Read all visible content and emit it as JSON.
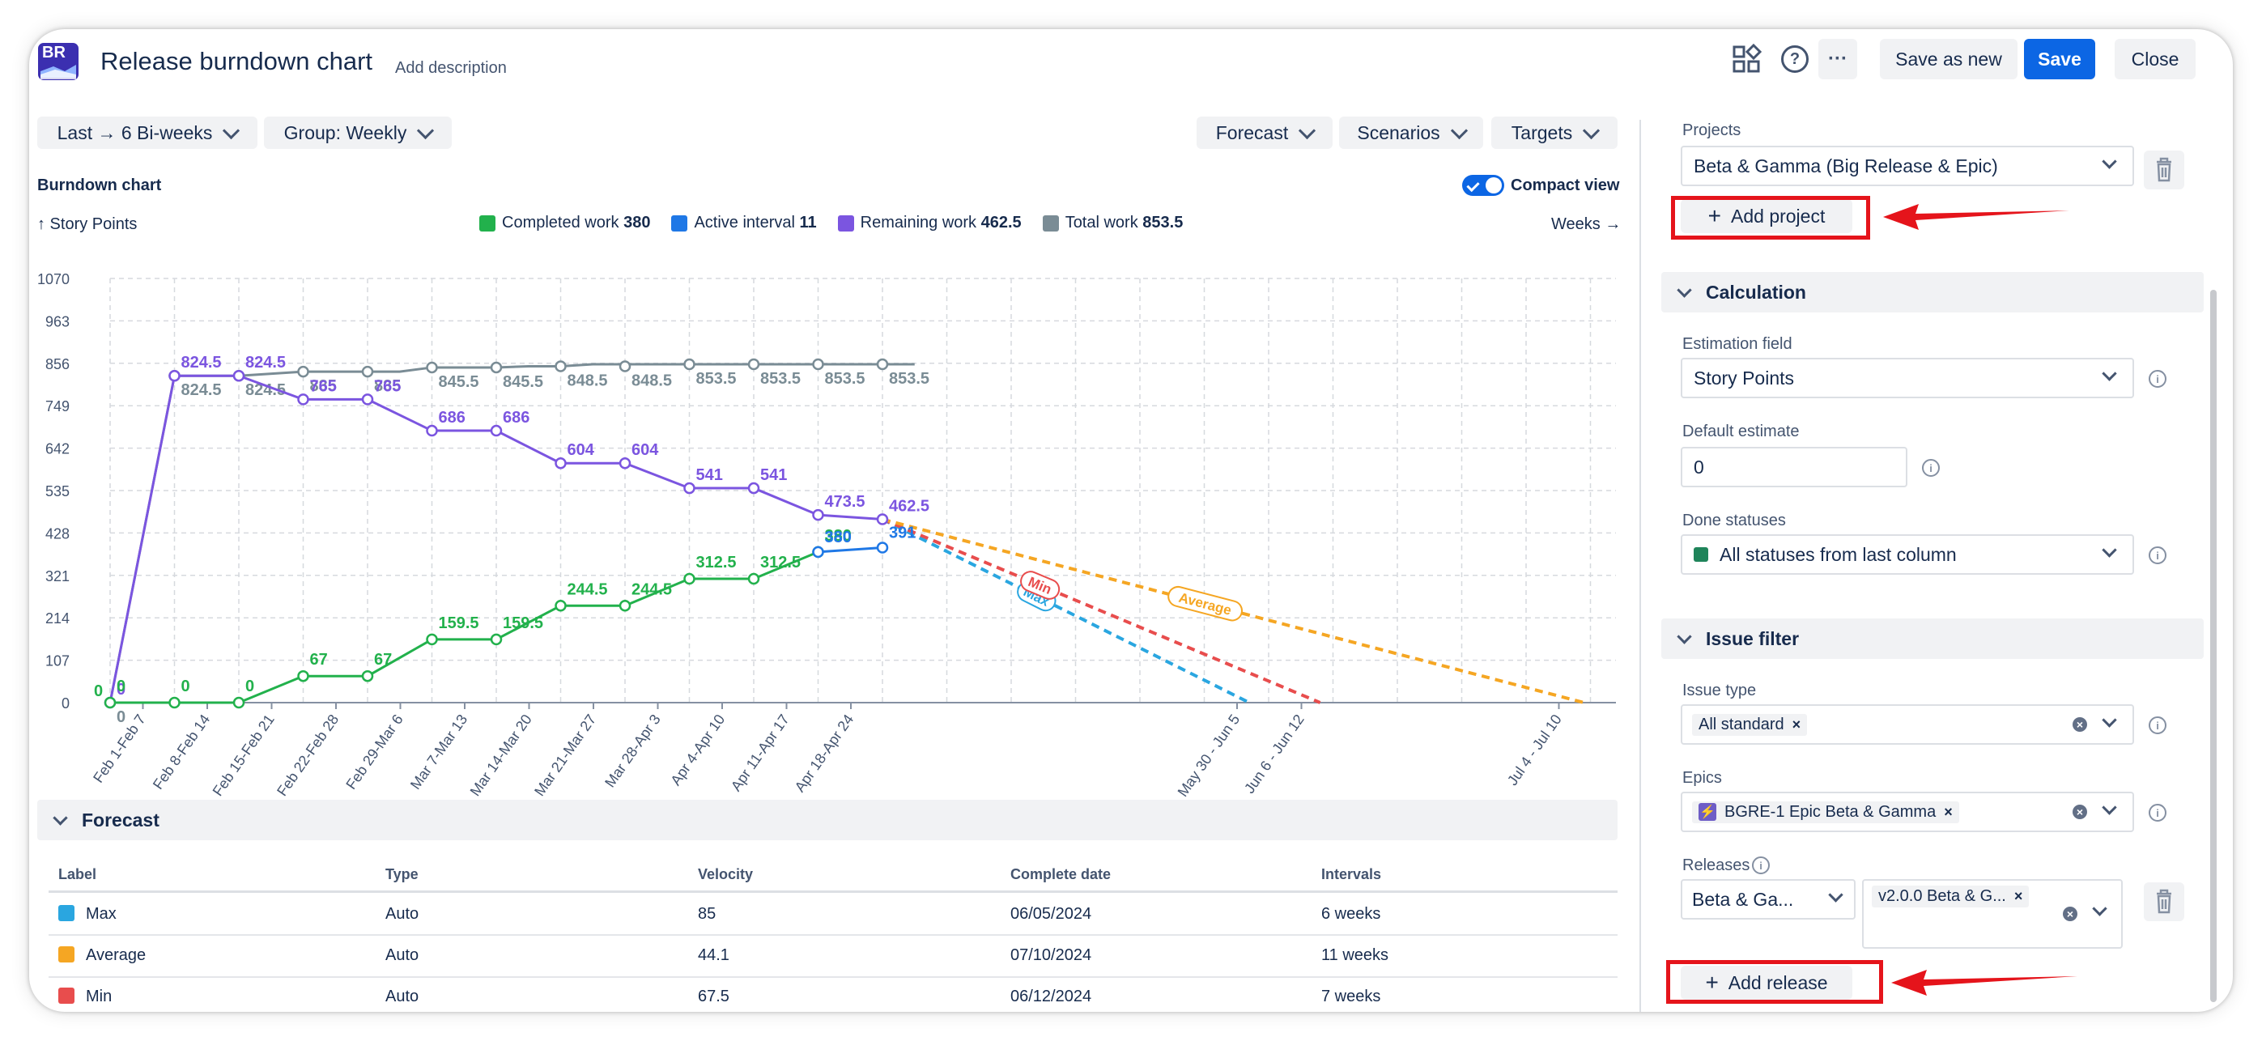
{
  "header": {
    "logo_text": "BR",
    "title": "Release burndown chart",
    "add_description": "Add description",
    "save_as_new": "Save as new",
    "save": "Save",
    "close": "Close",
    "help_icon": "?",
    "more_icon": "···"
  },
  "toolbar": {
    "range": "Last → 6 Bi-weeks",
    "group": "Group: Weekly",
    "forecast": "Forecast",
    "scenarios": "Scenarios",
    "targets": "Targets"
  },
  "chart_header": {
    "title": "Burndown chart",
    "compact_view": "Compact view",
    "y_axis_label": "↑ Story Points",
    "x_axis_label": "Weeks →"
  },
  "legend": [
    {
      "name": "Completed work",
      "value": "380",
      "color": "#22b14c"
    },
    {
      "name": "Active interval",
      "value": "11",
      "color": "#1f78e6"
    },
    {
      "name": "Remaining work",
      "value": "462.5",
      "color": "#7b55e0"
    },
    {
      "name": "Total work",
      "value": "853.5",
      "color": "#7a8c95"
    }
  ],
  "chart_data": {
    "type": "line",
    "ylim": [
      0,
      1070
    ],
    "y_ticks": [
      "0",
      "107",
      "214",
      "321",
      "428",
      "535",
      "642",
      "749",
      "856",
      "963",
      "1070"
    ],
    "x_tick_labels": [
      {
        "i": 1,
        "label": "Feb 1-Feb 7"
      },
      {
        "i": 2,
        "label": "Feb 8-Feb 14"
      },
      {
        "i": 3,
        "label": "Feb 15-Feb 21"
      },
      {
        "i": 4,
        "label": "Feb 22-Feb 28"
      },
      {
        "i": 5,
        "label": "Feb 29-Mar 6"
      },
      {
        "i": 6,
        "label": "Mar 7-Mar 13"
      },
      {
        "i": 7,
        "label": "Mar 14-Mar 20"
      },
      {
        "i": 8,
        "label": "Mar 21-Mar 27"
      },
      {
        "i": 9,
        "label": "Mar 28-Apr 3"
      },
      {
        "i": 10,
        "label": "Apr 4-Apr 10"
      },
      {
        "i": 11,
        "label": "Apr 11-Apr 17"
      },
      {
        "i": 12,
        "label": "Apr 18-Apr 24"
      },
      {
        "i": 18,
        "label": "May 30 - Jun 5"
      },
      {
        "i": 19,
        "label": "Jun 6 - Jun 12"
      },
      {
        "i": 23,
        "label": "Jul 4 - Jul 10"
      }
    ],
    "series": [
      {
        "name": "Total work",
        "color": "#7a8c95",
        "x": [
          0,
          1,
          2,
          3,
          3.5,
          4,
          4.5,
          5,
          6,
          6.5,
          7,
          7.5,
          8,
          8.5,
          9,
          9.5,
          10,
          10.5,
          11,
          11.5,
          12,
          12.5
        ],
        "values": [
          0,
          824.5,
          824.5,
          835,
          835,
          835,
          835,
          845.5,
          845.5,
          848.5,
          848.5,
          853.5,
          853.5,
          853.5,
          853.5,
          853.5,
          853.5,
          853.5,
          853.5,
          853.5,
          853.5,
          853.5
        ],
        "points": [
          {
            "x": 1,
            "y": 824.5,
            "label": "824.5"
          },
          {
            "x": 2,
            "y": 824.5,
            "label": "824.5"
          },
          {
            "x": 3,
            "y": 835,
            "label": "835"
          },
          {
            "x": 4,
            "y": 835,
            "label": "835"
          },
          {
            "x": 5,
            "y": 845.5,
            "label": "845.5"
          },
          {
            "x": 6,
            "y": 845.5,
            "label": "845.5"
          },
          {
            "x": 7,
            "y": 848.5,
            "label": "848.5"
          },
          {
            "x": 8,
            "y": 848.5,
            "label": "848.5"
          },
          {
            "x": 9,
            "y": 853.5,
            "label": "853.5"
          },
          {
            "x": 10,
            "y": 853.5,
            "label": "853.5"
          },
          {
            "x": 11,
            "y": 853.5,
            "label": "853.5"
          },
          {
            "x": 12,
            "y": 853.5,
            "label": "853.5"
          }
        ]
      },
      {
        "name": "Remaining work",
        "color": "#7b55e0",
        "points": [
          {
            "x": 0,
            "y": 0,
            "label": "0"
          },
          {
            "x": 1,
            "y": 824.5,
            "label": "824.5"
          },
          {
            "x": 2,
            "y": 824.5,
            "label": "824.5"
          },
          {
            "x": 3,
            "y": 765,
            "label": "765"
          },
          {
            "x": 4,
            "y": 765,
            "label": "765"
          },
          {
            "x": 5,
            "y": 686,
            "label": "686"
          },
          {
            "x": 6,
            "y": 686,
            "label": "686"
          },
          {
            "x": 7,
            "y": 604,
            "label": "604"
          },
          {
            "x": 8,
            "y": 604,
            "label": "604"
          },
          {
            "x": 9,
            "y": 541,
            "label": "541"
          },
          {
            "x": 10,
            "y": 541,
            "label": "541"
          },
          {
            "x": 11,
            "y": 473.5,
            "label": "473.5"
          },
          {
            "x": 12,
            "y": 462.5,
            "label": "462.5"
          }
        ]
      },
      {
        "name": "Completed work",
        "color": "#22b14c",
        "points": [
          {
            "x": 0,
            "y": 0,
            "label": "0"
          },
          {
            "x": 1,
            "y": 0,
            "label": "0"
          },
          {
            "x": 2,
            "y": 0,
            "label": "0"
          },
          {
            "x": 3,
            "y": 67,
            "label": "67"
          },
          {
            "x": 4,
            "y": 67,
            "label": "67"
          },
          {
            "x": 5,
            "y": 159.5,
            "label": "159.5"
          },
          {
            "x": 6,
            "y": 159.5,
            "label": "159.5"
          },
          {
            "x": 7,
            "y": 244.5,
            "label": "244.5"
          },
          {
            "x": 8,
            "y": 244.5,
            "label": "244.5"
          },
          {
            "x": 9,
            "y": 312.5,
            "label": "312.5"
          },
          {
            "x": 10,
            "y": 312.5,
            "label": "312.5"
          },
          {
            "x": 11,
            "y": 380,
            "label": "380"
          }
        ]
      },
      {
        "name": "Active interval",
        "color": "#1f78e6",
        "points": [
          {
            "x": 11,
            "y": 380,
            "label": "380"
          },
          {
            "x": 12,
            "y": 391,
            "label": "391"
          }
        ]
      }
    ],
    "forecasts": [
      {
        "label": "Max",
        "color": "#2aa6e0",
        "from": [
          12,
          462.5
        ],
        "to": [
          17.7,
          0
        ]
      },
      {
        "label": "Min",
        "color": "#e84d4d",
        "from": [
          12,
          462.5
        ],
        "to": [
          18.8,
          0
        ]
      },
      {
        "label": "Average",
        "color": "#f5a623",
        "from": [
          12,
          462.5
        ],
        "to": [
          22.9,
          0
        ]
      }
    ],
    "extra_labels": [
      {
        "x": 0,
        "y": 0,
        "label": "0",
        "color": "#22b14c"
      },
      {
        "x": 0,
        "y": 0,
        "label": "0",
        "color": "#7a8c95"
      }
    ]
  },
  "forecast_section": {
    "title": "Forecast",
    "columns": [
      "Label",
      "Type",
      "Velocity",
      "Complete date",
      "Intervals"
    ],
    "rows": [
      {
        "label": "Max",
        "type": "Auto",
        "velocity": "85",
        "date": "06/05/2024",
        "intervals": "6 weeks",
        "color": "#2aa6e0"
      },
      {
        "label": "Average",
        "type": "Auto",
        "velocity": "44.1",
        "date": "07/10/2024",
        "intervals": "11 weeks",
        "color": "#f5a623"
      },
      {
        "label": "Min",
        "type": "Auto",
        "velocity": "67.5",
        "date": "06/12/2024",
        "intervals": "7 weeks",
        "color": "#e84d4d"
      }
    ]
  },
  "settings": {
    "projects_label": "Projects",
    "project_value": "Beta & Gamma (Big Release & Epic)",
    "add_project": "Add project",
    "calculation_title": "Calculation",
    "estimation_label": "Estimation field",
    "estimation_value": "Story Points",
    "default_estimate_label": "Default estimate",
    "default_estimate_value": "0",
    "done_statuses_label": "Done statuses",
    "done_statuses_value": "All statuses from last column",
    "issue_filter_title": "Issue filter",
    "issue_type_label": "Issue type",
    "issue_type_tag": "All standard",
    "epics_label": "Epics",
    "epic_tag": "BGRE-1 Epic Beta & Gamma",
    "releases_label": "Releases",
    "release_project": "Beta & Ga...",
    "release_tag": "v2.0.0 Beta & G...",
    "add_release": "Add release",
    "done_color": "#1f845a",
    "tag_remove": "×",
    "clear_icon": "×",
    "info_icon": "i"
  },
  "accent_color": "#0c66e4",
  "annotation_color": "#e5141b"
}
